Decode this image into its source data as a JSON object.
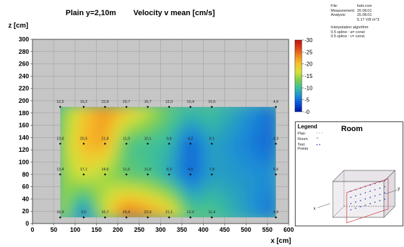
{
  "chart_data": {
    "type": "heatmap",
    "title": "Plain y=2,10m",
    "subtitle": "Velocity v mean [cm/s]",
    "xlabel": "x [cm]",
    "ylabel": "z [cm]",
    "xlim": [
      0,
      600
    ],
    "ylim": [
      0,
      300
    ],
    "x_ticks": [
      "0",
      "50",
      "100",
      "150",
      "200",
      "250",
      "300",
      "350",
      "400",
      "450",
      "500",
      "550",
      "600"
    ],
    "y_ticks": [
      "0",
      "20",
      "40",
      "60",
      "80",
      "100",
      "120",
      "140",
      "160",
      "180",
      "200",
      "220",
      "240",
      "260",
      "280",
      "300"
    ],
    "grid": true,
    "field_extent": {
      "x": [
        65,
        570
      ],
      "z": [
        10,
        190
      ]
    },
    "colorbar": {
      "min": 0,
      "max": 30,
      "ticks": [
        "-30",
        "-25",
        "-20",
        "-15",
        "-10",
        "-5",
        "-0"
      ],
      "colors": [
        "#0016a8",
        "#0b4fd8",
        "#1d8ed6",
        "#3cbf9a",
        "#7fcf4e",
        "#d7e23a",
        "#f6c22a",
        "#f08a1c",
        "#e0401a",
        "#c01010"
      ]
    },
    "measurement_x": [
      65,
      120,
      170,
      220,
      270,
      320,
      370,
      420,
      570
    ],
    "measurement_z": [
      10,
      80,
      130,
      190
    ],
    "value_labels": [
      {
        "z": 190,
        "labels": [
          "12,5",
          "19,2",
          "22,8",
          "20,7",
          "16,7",
          "12,0",
          "10,4",
          "10,5",
          "4,6"
        ]
      },
      {
        "z": 130,
        "labels": [
          "13,8",
          "20,5",
          "21,8",
          "11,0",
          "10,1",
          "9,6",
          "4,2",
          "8,1",
          "4,3"
        ]
      },
      {
        "z": 80,
        "labels": [
          "13,4",
          "17,1",
          "14,6",
          "11,6",
          "11,0",
          "8,3",
          "4,5",
          "7,8",
          "6,6"
        ]
      },
      {
        "z": 10,
        "labels": [
          "16,8",
          "3,5",
          "16,7",
          "26,6",
          "23,9",
          "21,1",
          "12,0",
          "11,4",
          "4,6"
        ]
      }
    ]
  },
  "info": {
    "rows": [
      {
        "k": "File:",
        "v": "fvdo.rom"
      },
      {
        "k": "Measurement:",
        "v": "20.08.01"
      },
      {
        "k": "Analysis:",
        "v": "20.08.01"
      },
      {
        "k": "",
        "v": "5.17 V/8 m^3"
      }
    ],
    "interp_title": "Interpolation algorithm",
    "interp_rows": [
      "0.5  spline : a= const",
      "0.5  spline : c= const"
    ]
  },
  "legend": {
    "title": "Legend",
    "room_title": "Room",
    "items": [
      "Plan",
      "Room",
      "Test",
      "Points"
    ],
    "axis_labels": {
      "x": "x",
      "y": "y"
    }
  }
}
